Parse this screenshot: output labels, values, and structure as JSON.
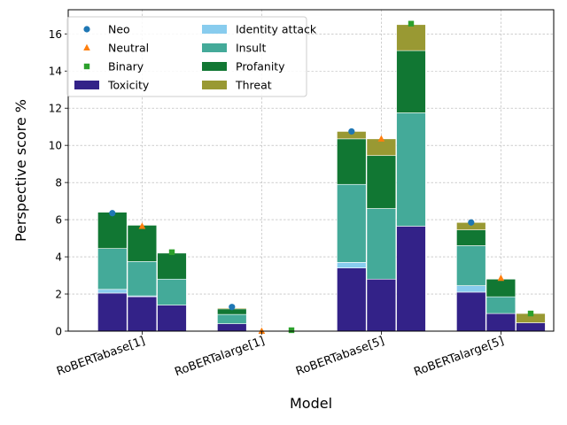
{
  "chart_data": {
    "type": "bar",
    "stacked": true,
    "xlabel": "Model",
    "ylabel": "Perspective score %",
    "ylim": [
      0,
      17.3
    ],
    "yticks": [
      0,
      2,
      4,
      6,
      8,
      10,
      12,
      14,
      16
    ],
    "grid": true,
    "legend_position": "top-left",
    "categories": [
      "RoBERTabase[1]",
      "RoBERTalarge[1]",
      "RoBERTabase[5]",
      "RoBERTalarge[5]"
    ],
    "groups": [
      "Neo",
      "Neutral",
      "Binary"
    ],
    "markers": [
      {
        "name": "Neo",
        "shape": "circle",
        "color": "#1f77b4",
        "values": [
          6.35,
          1.3,
          10.75,
          5.85
        ]
      },
      {
        "name": "Neutral",
        "shape": "triangle",
        "color": "#ff7f0e",
        "values": [
          5.65,
          0.0,
          10.35,
          2.85
        ]
      },
      {
        "name": "Binary",
        "shape": "square",
        "color": "#2ca02c",
        "values": [
          4.25,
          0.05,
          16.55,
          0.95
        ]
      }
    ],
    "series": [
      {
        "name": "Toxicity",
        "color": "#332288",
        "values": [
          [
            2.05,
            1.85,
            1.4
          ],
          [
            0.4,
            0.0,
            0.0
          ],
          [
            3.4,
            2.8,
            5.65
          ],
          [
            2.1,
            0.95,
            0.45
          ]
        ]
      },
      {
        "name": "Identity attack",
        "color": "#88ccee",
        "values": [
          [
            0.2,
            0.05,
            0.0
          ],
          [
            0.0,
            0.0,
            0.0
          ],
          [
            0.3,
            0.0,
            0.0
          ],
          [
            0.35,
            0.0,
            0.0
          ]
        ]
      },
      {
        "name": "Insult",
        "color": "#44aa99",
        "values": [
          [
            2.2,
            1.85,
            1.4
          ],
          [
            0.5,
            0.0,
            0.0
          ],
          [
            4.2,
            3.8,
            6.1
          ],
          [
            2.15,
            0.9,
            0.0
          ]
        ]
      },
      {
        "name": "Profanity",
        "color": "#117733",
        "values": [
          [
            1.95,
            1.95,
            1.4
          ],
          [
            0.3,
            0.0,
            0.0
          ],
          [
            2.45,
            2.85,
            3.35
          ],
          [
            0.85,
            0.95,
            0.0
          ]
        ]
      },
      {
        "name": "Threat",
        "color": "#999933",
        "values": [
          [
            0.0,
            0.0,
            0.0
          ],
          [
            0.05,
            0.0,
            0.0
          ],
          [
            0.4,
            0.9,
            1.4
          ],
          [
            0.4,
            0.0,
            0.5
          ]
        ]
      }
    ]
  }
}
